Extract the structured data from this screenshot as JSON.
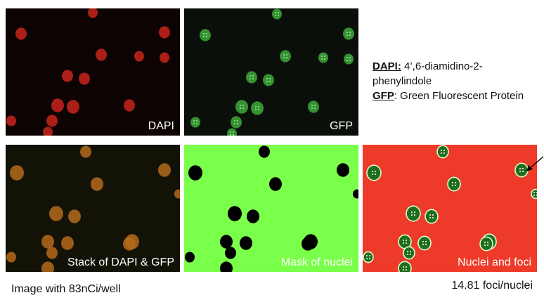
{
  "panels": {
    "dapi": {
      "label": "DAPI",
      "nucleus_color": "#c8241c"
    },
    "gfp": {
      "label": "GFP",
      "nucleus_color": "#3ea83a"
    },
    "stack": {
      "label": "Stack of DAPI & GFP",
      "nucleus_color": "#b46a1c"
    },
    "mask": {
      "label": "Mask of nuclei",
      "background_color": "#7aff4a",
      "nucleus_color": "#000000"
    },
    "foci": {
      "label": "Nuclei and foci",
      "background_color": "#ee3a29",
      "nucleus_color": "#1f6e1c"
    }
  },
  "legend": {
    "dapi_key": "DAPI:",
    "dapi_text": " 4’,6-diamidino-2-phenylindole",
    "gfp_key": "GFP",
    "gfp_text": ": Green Fluorescent Protein"
  },
  "captions": {
    "left": "Image with 83nCi/well",
    "right": "14.81 foci/nuclei"
  }
}
